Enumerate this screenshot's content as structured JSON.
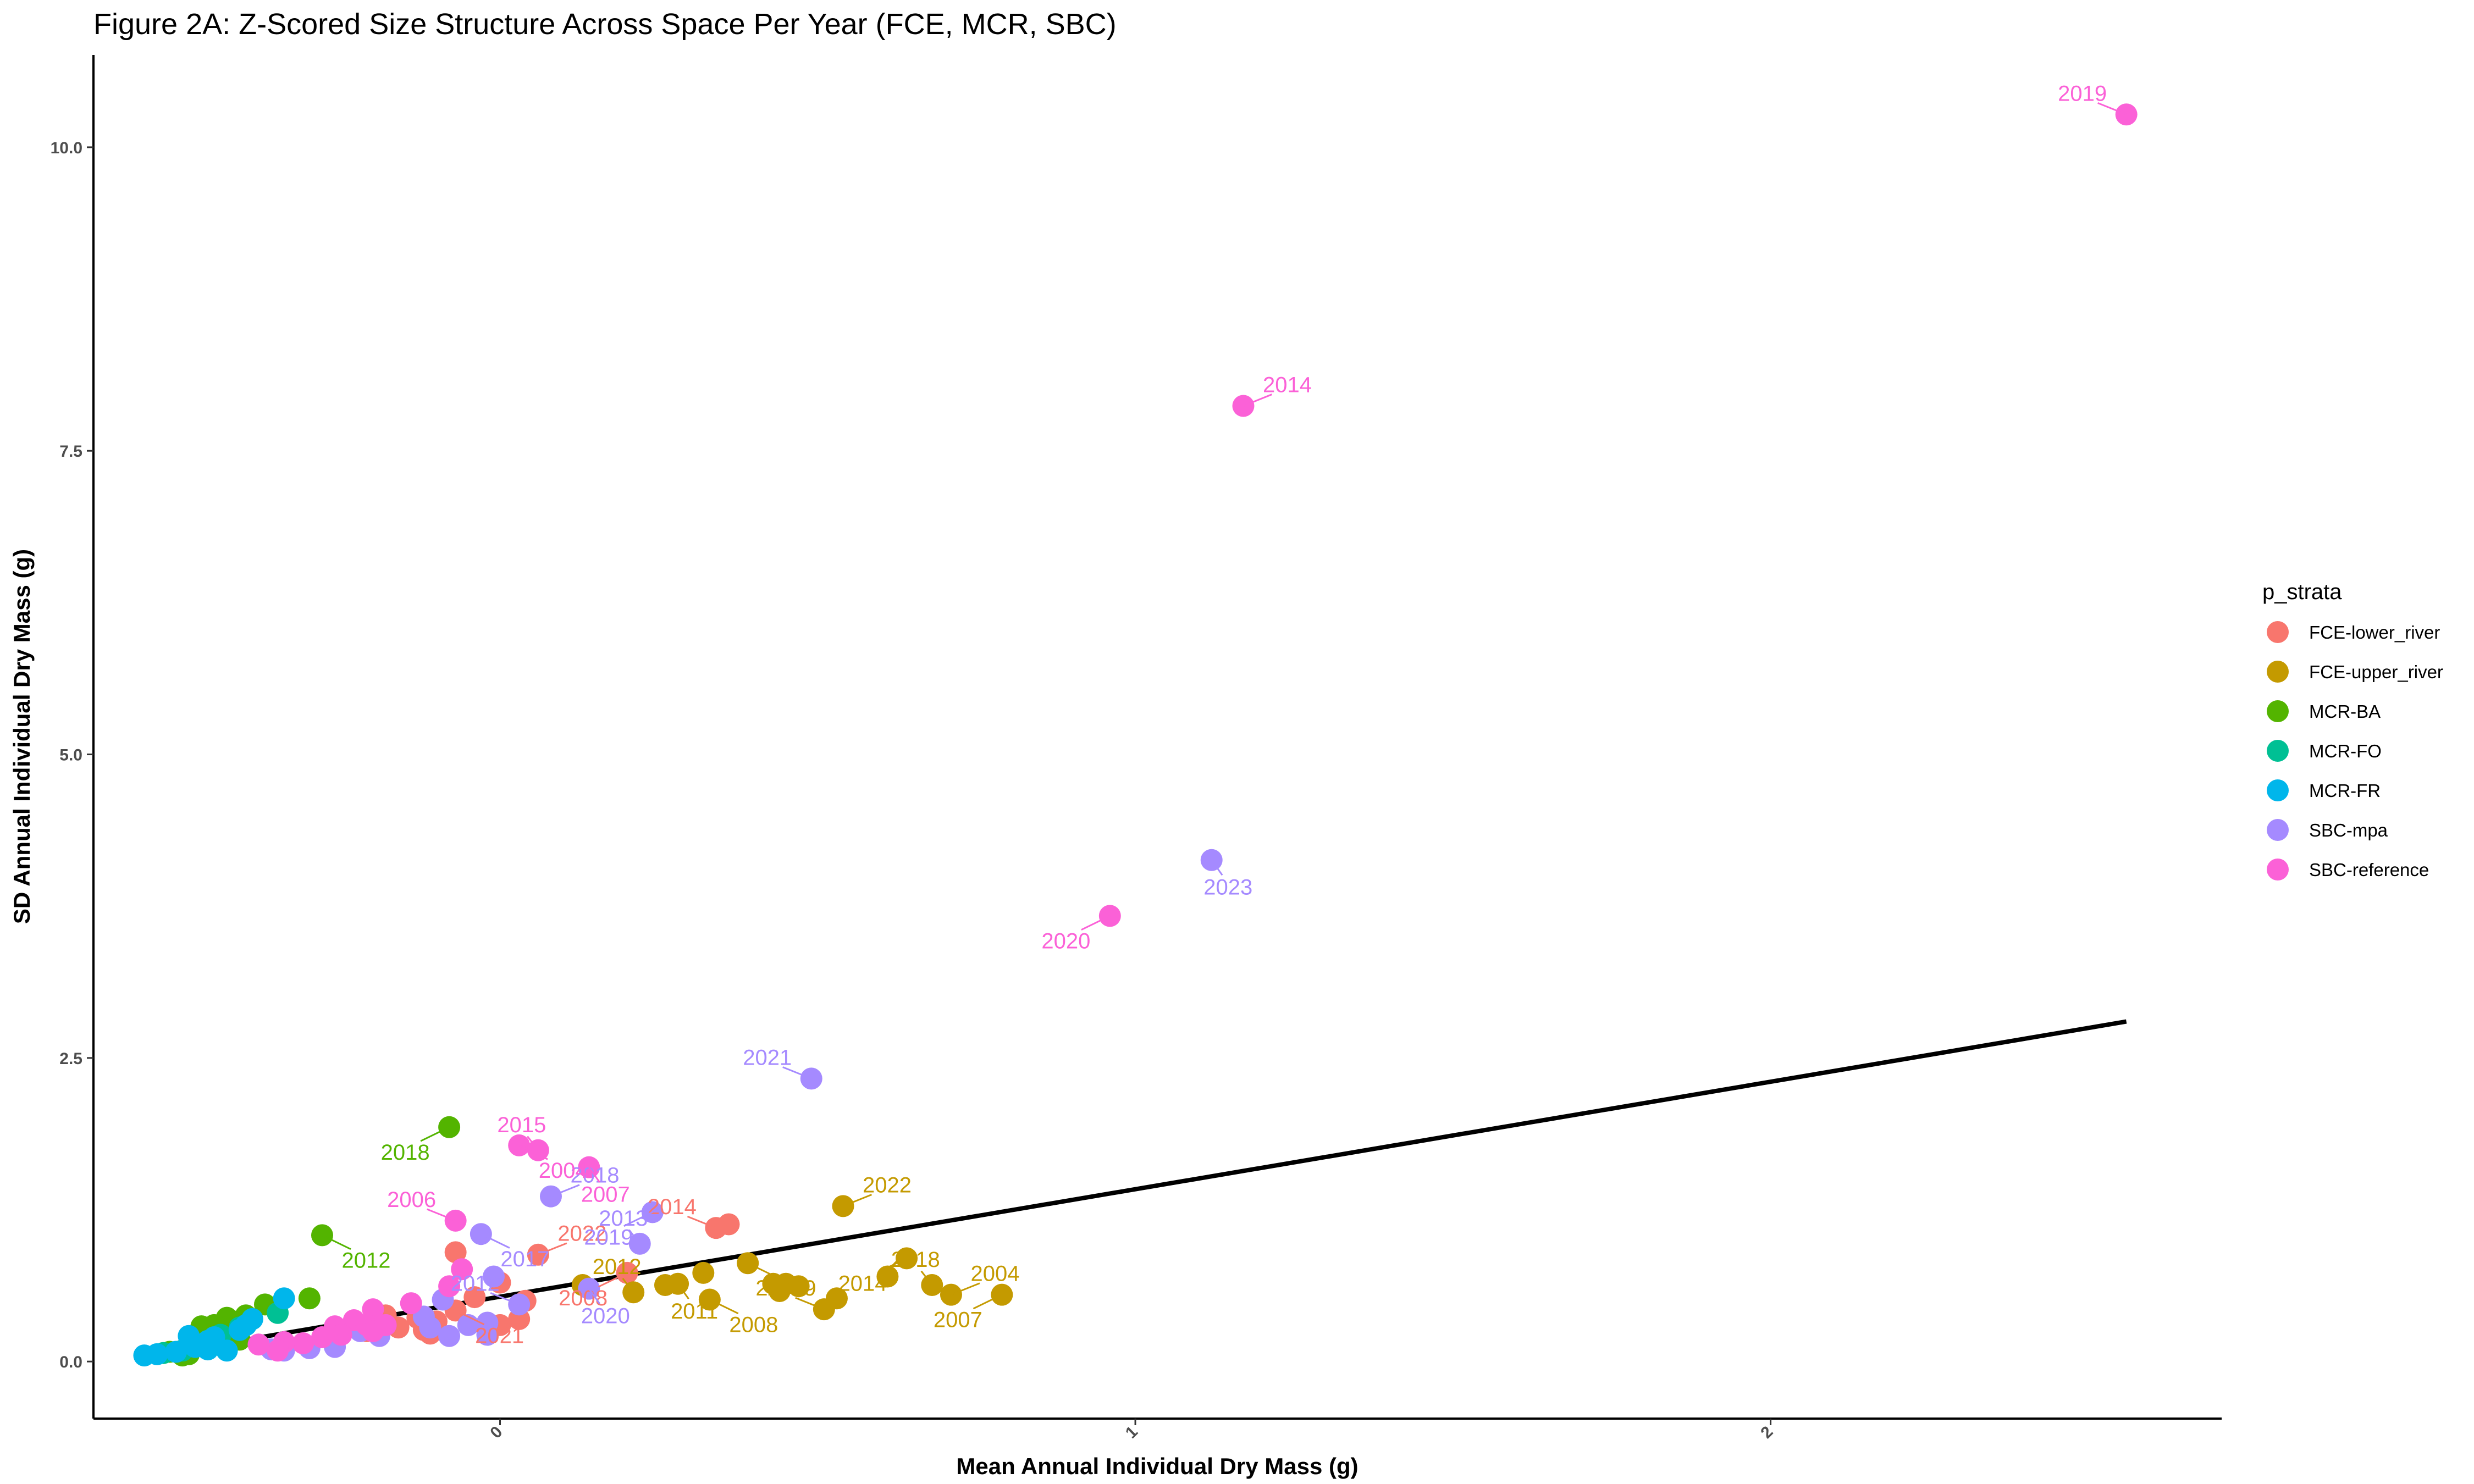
{
  "chart_data": {
    "type": "scatter",
    "title": "Figure 2A: Z-Scored Size Structure Across Space Per Year (FCE, MCR, SBC)",
    "xlabel": "Mean Annual Individual Dry Mass (g)",
    "ylabel": "SD Annual Individual Dry Mass (g)",
    "xlim": [
      -0.64,
      2.71
    ],
    "ylim": [
      -0.47,
      10.76
    ],
    "x_ticks": [
      0,
      1,
      2
    ],
    "y_ticks": [
      0.0,
      2.5,
      5.0,
      7.5,
      10.0
    ],
    "x_tick_labels": [
      "0",
      "1",
      "2"
    ],
    "y_tick_labels": [
      "0.0",
      "2.5",
      "5.0",
      "7.5",
      "10.0"
    ],
    "grid": false,
    "legend_position": "right",
    "legend_title": "p_strata",
    "series": [
      {
        "name": "FCE-lower_river",
        "color": "#F8766D",
        "points": [
          {
            "x": 0.36,
            "y": 1.13
          },
          {
            "x": 0.34,
            "y": 1.1,
            "label": "2014"
          },
          {
            "x": -0.07,
            "y": 0.9
          },
          {
            "x": 0.06,
            "y": 0.88,
            "label": "2022"
          },
          {
            "x": 0.2,
            "y": 0.73,
            "label": "2008"
          },
          {
            "x": 0.0,
            "y": 0.65
          },
          {
            "x": 0.04,
            "y": 0.5
          },
          {
            "x": -0.04,
            "y": 0.53
          },
          {
            "x": 0.03,
            "y": 0.35
          },
          {
            "x": 0.0,
            "y": 0.3
          },
          {
            "x": -0.07,
            "y": 0.42,
            "label": "2021"
          },
          {
            "x": -0.1,
            "y": 0.33
          },
          {
            "x": -0.13,
            "y": 0.36
          },
          {
            "x": -0.12,
            "y": 0.26
          },
          {
            "x": -0.11,
            "y": 0.23
          },
          {
            "x": -0.16,
            "y": 0.28
          },
          {
            "x": -0.18,
            "y": 0.38
          },
          {
            "x": -0.21,
            "y": 0.25
          }
        ]
      },
      {
        "name": "FCE-upper_river",
        "color": "#C49A00",
        "points": [
          {
            "x": 0.54,
            "y": 1.28,
            "label": "2022"
          },
          {
            "x": 0.64,
            "y": 0.85,
            "label": "2014"
          },
          {
            "x": 0.39,
            "y": 0.81,
            "label": "2009"
          },
          {
            "x": 0.32,
            "y": 0.73
          },
          {
            "x": 0.61,
            "y": 0.7
          },
          {
            "x": 0.43,
            "y": 0.64
          },
          {
            "x": 0.45,
            "y": 0.64
          },
          {
            "x": 0.47,
            "y": 0.62
          },
          {
            "x": 0.44,
            "y": 0.58
          },
          {
            "x": 0.68,
            "y": 0.63,
            "label": "2018"
          },
          {
            "x": 0.13,
            "y": 0.63
          },
          {
            "x": 0.26,
            "y": 0.63
          },
          {
            "x": 0.28,
            "y": 0.64,
            "label": "2011"
          },
          {
            "x": 0.53,
            "y": 0.52
          },
          {
            "x": 0.51,
            "y": 0.43,
            "label": "2006"
          },
          {
            "x": 0.71,
            "y": 0.55,
            "label": "2004"
          },
          {
            "x": 0.79,
            "y": 0.55,
            "label": "2007"
          },
          {
            "x": 0.33,
            "y": 0.51,
            "label": "2008"
          },
          {
            "x": 0.21,
            "y": 0.57,
            "label": "2012"
          }
        ]
      },
      {
        "name": "MCR-BA",
        "color": "#53B400",
        "points": [
          {
            "x": -0.08,
            "y": 1.93,
            "label": "2018"
          },
          {
            "x": -0.28,
            "y": 1.04,
            "label": "2012"
          },
          {
            "x": -0.3,
            "y": 0.52
          },
          {
            "x": -0.37,
            "y": 0.47
          },
          {
            "x": -0.4,
            "y": 0.38
          },
          {
            "x": -0.42,
            "y": 0.33
          },
          {
            "x": -0.43,
            "y": 0.36
          },
          {
            "x": -0.45,
            "y": 0.3
          },
          {
            "x": -0.47,
            "y": 0.29
          },
          {
            "x": -0.41,
            "y": 0.18
          },
          {
            "x": -0.52,
            "y": 0.08
          },
          {
            "x": -0.49,
            "y": 0.06
          },
          {
            "x": -0.5,
            "y": 0.05
          }
        ]
      },
      {
        "name": "MCR-FO",
        "color": "#00C094",
        "points": [
          {
            "x": -0.35,
            "y": 0.4
          },
          {
            "x": -0.41,
            "y": 0.28
          },
          {
            "x": -0.44,
            "y": 0.22
          },
          {
            "x": -0.48,
            "y": 0.13
          },
          {
            "x": -0.5,
            "y": 0.09
          },
          {
            "x": -0.53,
            "y": 0.07
          }
        ]
      },
      {
        "name": "MCR-FR",
        "color": "#00B6EB",
        "points": [
          {
            "x": -0.34,
            "y": 0.52
          },
          {
            "x": -0.39,
            "y": 0.35
          },
          {
            "x": -0.4,
            "y": 0.3
          },
          {
            "x": -0.41,
            "y": 0.26
          },
          {
            "x": -0.45,
            "y": 0.2
          },
          {
            "x": -0.46,
            "y": 0.17
          },
          {
            "x": -0.49,
            "y": 0.21
          },
          {
            "x": -0.48,
            "y": 0.12
          },
          {
            "x": -0.51,
            "y": 0.08
          },
          {
            "x": -0.54,
            "y": 0.06
          },
          {
            "x": -0.56,
            "y": 0.05
          },
          {
            "x": -0.46,
            "y": 0.1
          },
          {
            "x": -0.43,
            "y": 0.09
          }
        ]
      },
      {
        "name": "SBC-mpa",
        "color": "#A58AFF",
        "points": [
          {
            "x": 1.12,
            "y": 4.13,
            "label": "2023"
          },
          {
            "x": 0.49,
            "y": 2.33,
            "label": "2021"
          },
          {
            "x": 0.08,
            "y": 1.36,
            "label": "2018"
          },
          {
            "x": 0.24,
            "y": 1.23,
            "label": "2019"
          },
          {
            "x": -0.03,
            "y": 1.05,
            "label": "2017"
          },
          {
            "x": 0.22,
            "y": 0.97,
            "label": "2013"
          },
          {
            "x": -0.01,
            "y": 0.7
          },
          {
            "x": 0.14,
            "y": 0.6,
            "label": "2020"
          },
          {
            "x": 0.03,
            "y": 0.47,
            "label": "2012"
          },
          {
            "x": -0.09,
            "y": 0.51
          },
          {
            "x": -0.12,
            "y": 0.37
          },
          {
            "x": -0.05,
            "y": 0.3
          },
          {
            "x": -0.02,
            "y": 0.32
          },
          {
            "x": -0.08,
            "y": 0.21
          },
          {
            "x": -0.11,
            "y": 0.28
          },
          {
            "x": -0.02,
            "y": 0.22
          },
          {
            "x": -0.19,
            "y": 0.21
          },
          {
            "x": -0.22,
            "y": 0.25
          },
          {
            "x": -0.26,
            "y": 0.12
          },
          {
            "x": -0.34,
            "y": 0.09
          },
          {
            "x": -0.36,
            "y": 0.1
          },
          {
            "x": -0.3,
            "y": 0.11
          }
        ]
      },
      {
        "name": "SBC-reference",
        "color": "#FB61D7",
        "points": [
          {
            "x": 2.56,
            "y": 10.27,
            "label": "2019"
          },
          {
            "x": 1.17,
            "y": 7.87,
            "label": "2014"
          },
          {
            "x": 0.96,
            "y": 3.67,
            "label": "2020"
          },
          {
            "x": 0.03,
            "y": 1.78,
            "label": "2004"
          },
          {
            "x": 0.06,
            "y": 1.74,
            "label": "2015"
          },
          {
            "x": 0.14,
            "y": 1.6,
            "label": "2007"
          },
          {
            "x": -0.07,
            "y": 1.16,
            "label": "2006"
          },
          {
            "x": -0.06,
            "y": 0.76
          },
          {
            "x": -0.08,
            "y": 0.62
          },
          {
            "x": -0.14,
            "y": 0.48
          },
          {
            "x": -0.2,
            "y": 0.43
          },
          {
            "x": -0.23,
            "y": 0.34
          },
          {
            "x": -0.21,
            "y": 0.3
          },
          {
            "x": -0.26,
            "y": 0.29
          },
          {
            "x": -0.2,
            "y": 0.25
          },
          {
            "x": -0.25,
            "y": 0.22
          },
          {
            "x": -0.28,
            "y": 0.2
          },
          {
            "x": -0.31,
            "y": 0.15
          },
          {
            "x": -0.34,
            "y": 0.16
          },
          {
            "x": -0.35,
            "y": 0.09
          },
          {
            "x": -0.38,
            "y": 0.14
          },
          {
            "x": -0.18,
            "y": 0.3
          }
        ]
      }
    ],
    "trend_line": {
      "color": "#000000",
      "points": [
        {
          "x": -0.49,
          "y": 0.1
        },
        {
          "x": 2.56,
          "y": 2.8
        }
      ]
    }
  }
}
